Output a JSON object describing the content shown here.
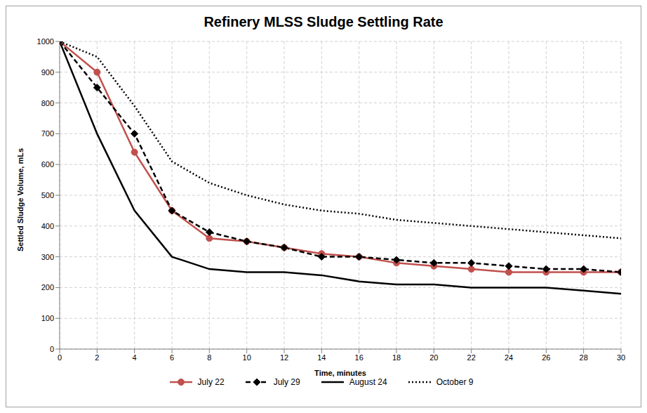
{
  "chart_data": {
    "type": "line",
    "title": "Refinery MLSS Sludge Settling Rate",
    "x_label": "Time, minutes",
    "y_label": "Settled Sludge Volume, mLs",
    "x": [
      0,
      2,
      4,
      6,
      8,
      10,
      12,
      14,
      16,
      18,
      20,
      22,
      24,
      26,
      28,
      30
    ],
    "series": [
      {
        "name": "July 22",
        "color": "#c0504d",
        "marker": "circle",
        "line_style": "solid",
        "values": [
          1000,
          900,
          640,
          450,
          360,
          350,
          330,
          310,
          300,
          280,
          270,
          260,
          250,
          250,
          250,
          250
        ]
      },
      {
        "name": "July 29",
        "color": "#000000",
        "marker": "diamond",
        "line_style": "dashed",
        "values": [
          1000,
          850,
          700,
          450,
          380,
          350,
          330,
          300,
          300,
          290,
          280,
          280,
          270,
          260,
          260,
          250
        ]
      },
      {
        "name": "August 24",
        "color": "#000000",
        "marker": "none",
        "line_style": "solid",
        "values": [
          1000,
          700,
          450,
          300,
          260,
          250,
          250,
          240,
          220,
          210,
          210,
          200,
          200,
          200,
          190,
          180
        ]
      },
      {
        "name": "October 9",
        "color": "#000000",
        "marker": "none",
        "line_style": "dotted",
        "values": [
          1000,
          950,
          790,
          610,
          540,
          500,
          470,
          450,
          440,
          420,
          410,
          400,
          390,
          380,
          370,
          360
        ]
      }
    ],
    "xlim": [
      0,
      30
    ],
    "xticks": [
      0,
      2,
      4,
      6,
      8,
      10,
      12,
      14,
      16,
      18,
      20,
      22,
      24,
      26,
      28,
      30
    ],
    "ylim": [
      0,
      1000
    ],
    "yticks": [
      0,
      100,
      200,
      300,
      400,
      500,
      600,
      700,
      800,
      900,
      1000
    ],
    "grid": true,
    "legend": "bottom"
  }
}
